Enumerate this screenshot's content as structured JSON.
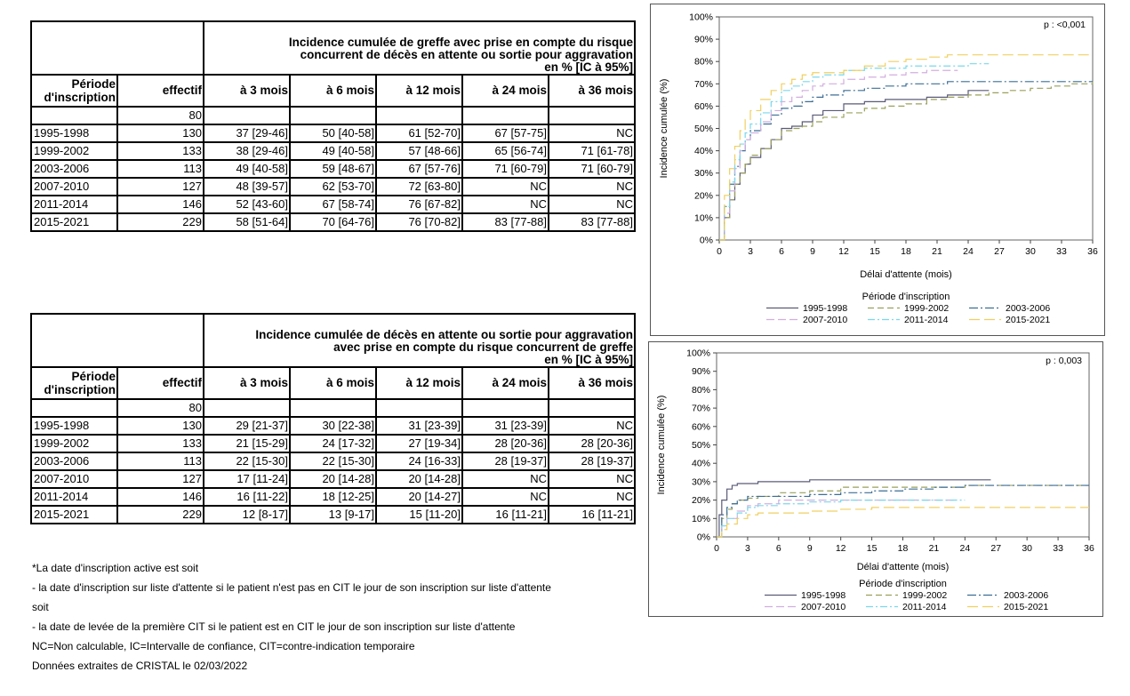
{
  "table_graft": {
    "title_lines": [
      "Incidence cumulée de greffe avec prise en compte du risque",
      "concurrent de décès en attente ou sortie pour aggravation",
      "en % [IC à 95%]"
    ],
    "headers": [
      "Période d'inscription",
      "effectif",
      "à 3 mois",
      "à 6 mois",
      "à 12 mois",
      "à 24 mois",
      "à 36 mois"
    ],
    "total_row": {
      "effectif": "80"
    },
    "rows": [
      {
        "period": "1995-1998",
        "n": "130",
        "m3": "37 [29-46]",
        "m6": "50 [40-58]",
        "m12": "61 [52-70]",
        "m24": "67 [57-75]",
        "m36": "NC"
      },
      {
        "period": "1999-2002",
        "n": "133",
        "m3": "38 [29-46]",
        "m6": "49 [40-58]",
        "m12": "57 [48-66]",
        "m24": "65 [56-74]",
        "m36": "71 [61-78]"
      },
      {
        "period": "2003-2006",
        "n": "113",
        "m3": "49 [40-58]",
        "m6": "59 [48-67]",
        "m12": "67 [57-76]",
        "m24": "71 [60-79]",
        "m36": "71 [60-79]"
      },
      {
        "period": "2007-2010",
        "n": "127",
        "m3": "48 [39-57]",
        "m6": "62 [53-70]",
        "m12": "72 [63-80]",
        "m24": "NC",
        "m36": "NC"
      },
      {
        "period": "2011-2014",
        "n": "146",
        "m3": "52 [43-60]",
        "m6": "67 [58-74]",
        "m12": "76 [67-82]",
        "m24": "NC",
        "m36": "NC"
      },
      {
        "period": "2015-2021",
        "n": "229",
        "m3": "58 [51-64]",
        "m6": "70 [64-76]",
        "m12": "76 [70-82]",
        "m24": "83 [77-88]",
        "m36": "83 [77-88]"
      }
    ]
  },
  "table_death": {
    "title_lines": [
      "Incidence cumulée de décès en attente ou sortie pour aggravation",
      "avec prise en compte du risque concurrent de greffe",
      "en % [IC à 95%]"
    ],
    "headers": [
      "Période d'inscription",
      "effectif",
      "à 3 mois",
      "à 6 mois",
      "à 12 mois",
      "à 24 mois",
      "à 36 mois"
    ],
    "total_row": {
      "effectif": "80"
    },
    "rows": [
      {
        "period": "1995-1998",
        "n": "130",
        "m3": "29 [21-37]",
        "m6": "30 [22-38]",
        "m12": "31 [23-39]",
        "m24": "31 [23-39]",
        "m36": "NC"
      },
      {
        "period": "1999-2002",
        "n": "133",
        "m3": "21 [15-29]",
        "m6": "24 [17-32]",
        "m12": "27 [19-34]",
        "m24": "28 [20-36]",
        "m36": "28 [20-36]"
      },
      {
        "period": "2003-2006",
        "n": "113",
        "m3": "22 [15-30]",
        "m6": "22 [15-30]",
        "m12": "24 [16-33]",
        "m24": "28 [19-37]",
        "m36": "28 [19-37]"
      },
      {
        "period": "2007-2010",
        "n": "127",
        "m3": "17 [11-24]",
        "m6": "20 [14-28]",
        "m12": "20 [14-28]",
        "m24": "NC",
        "m36": "NC"
      },
      {
        "period": "2011-2014",
        "n": "146",
        "m3": "16 [11-22]",
        "m6": "18 [12-25]",
        "m12": "20 [14-27]",
        "m24": "NC",
        "m36": "NC"
      },
      {
        "period": "2015-2021",
        "n": "229",
        "m3": "12 [8-17]",
        "m6": "13 [9-17]",
        "m12": "15 [11-20]",
        "m24": "16 [11-21]",
        "m36": "16 [11-21]"
      }
    ]
  },
  "notes": [
    "*La date d'inscription active est soit",
    "- la date d'inscription sur liste d'attente si le patient n'est pas en CIT le jour de son inscription sur liste d'attente",
    "soit",
    "- la date de levée de la première CIT si le patient est en CIT le jour de son inscription sur liste d'attente",
    "NC=Non calculable, IC=Intervalle de confiance, CIT=contre-indication temporaire",
    "Données extraites de CRISTAL le 02/03/2022"
  ],
  "colors": {
    "1995-1998": "#5a5a78",
    "1999-2002": "#9aa05a",
    "2003-2006": "#3c6e96",
    "2007-2010": "#d2aee0",
    "2011-2014": "#7ad8ec",
    "2015-2021": "#f0d060"
  },
  "chart_data": [
    {
      "type": "line",
      "title": "",
      "annotation": "p : <0,001",
      "xlabel": "Délai d'attente (mois)",
      "ylabel": "Incidence cumulée (%)",
      "xlim": [
        0,
        36
      ],
      "ylim": [
        0,
        100
      ],
      "xticks": [
        "0",
        "3",
        "6",
        "9",
        "12",
        "15",
        "18",
        "21",
        "24",
        "27",
        "30",
        "33",
        "36"
      ],
      "yticks": [
        "0%",
        "10%",
        "20%",
        "30%",
        "40%",
        "50%",
        "60%",
        "70%",
        "80%",
        "90%",
        "100%"
      ],
      "legend_title": "Période d'inscription",
      "legend_placement": "bottom",
      "series": [
        {
          "name": "1995-1998",
          "x": [
            0,
            0.5,
            1,
            1.5,
            2,
            2.5,
            3,
            4,
            5,
            6,
            7,
            8,
            9,
            10,
            12,
            14,
            16,
            18,
            20,
            22,
            24,
            26
          ],
          "y": [
            0,
            10,
            18,
            25,
            30,
            34,
            37,
            41,
            45,
            50,
            51,
            53,
            56,
            58,
            61,
            62,
            63,
            63,
            64,
            65,
            67,
            67
          ]
        },
        {
          "name": "1999-2002",
          "x": [
            0,
            0.5,
            1,
            1.5,
            2,
            2.5,
            3,
            4,
            5,
            6,
            7,
            8,
            9,
            10,
            12,
            14,
            16,
            18,
            20,
            22,
            24,
            26,
            28,
            30,
            32,
            34,
            36
          ],
          "y": [
            0,
            10,
            18,
            25,
            30,
            34,
            38,
            41,
            45,
            49,
            50,
            51,
            53,
            55,
            57,
            59,
            60,
            61,
            63,
            64,
            65,
            66,
            67,
            68,
            69,
            70,
            71
          ]
        },
        {
          "name": "2003-2006",
          "x": [
            0,
            0.5,
            1,
            1.5,
            2,
            2.5,
            3,
            4,
            5,
            6,
            7,
            8,
            9,
            10,
            12,
            14,
            16,
            18,
            20,
            22,
            24,
            26,
            28,
            30,
            32,
            34,
            36
          ],
          "y": [
            0,
            15,
            25,
            33,
            40,
            45,
            49,
            52,
            56,
            59,
            60,
            62,
            64,
            65,
            67,
            68,
            69,
            70,
            70,
            71,
            71,
            71,
            71,
            71,
            71,
            71,
            71
          ]
        },
        {
          "name": "2007-2010",
          "x": [
            0,
            0.5,
            1,
            1.5,
            2,
            2.5,
            3,
            4,
            5,
            6,
            7,
            8,
            9,
            10,
            12,
            14,
            16,
            18,
            20,
            22,
            23
          ],
          "y": [
            0,
            12,
            22,
            32,
            40,
            45,
            48,
            53,
            58,
            62,
            64,
            67,
            69,
            70,
            72,
            73,
            74,
            75,
            76,
            76,
            76
          ]
        },
        {
          "name": "2011-2014",
          "x": [
            0,
            0.5,
            1,
            1.5,
            2,
            2.5,
            3,
            4,
            5,
            6,
            7,
            8,
            9,
            10,
            12,
            14,
            16,
            18,
            20,
            22,
            24,
            26
          ],
          "y": [
            0,
            15,
            26,
            36,
            43,
            48,
            52,
            57,
            62,
            67,
            69,
            71,
            73,
            74,
            76,
            77,
            77,
            78,
            78,
            78,
            79,
            79
          ]
        },
        {
          "name": "2015-2021",
          "x": [
            0,
            0.5,
            1,
            1.5,
            2,
            2.5,
            3,
            4,
            5,
            6,
            7,
            8,
            9,
            10,
            12,
            14,
            16,
            18,
            20,
            22,
            24,
            26,
            28,
            30,
            32,
            34,
            36
          ],
          "y": [
            0,
            20,
            32,
            42,
            49,
            54,
            58,
            63,
            67,
            70,
            72,
            74,
            75,
            75,
            76,
            78,
            80,
            81,
            82,
            83,
            83,
            83,
            83,
            83,
            83,
            83,
            83
          ]
        }
      ]
    },
    {
      "type": "line",
      "title": "",
      "annotation": "p : 0,003",
      "xlabel": "Délai d'attente (mois)",
      "ylabel": "Incidence cumulée (%)",
      "xlim": [
        0,
        36
      ],
      "ylim": [
        0,
        100
      ],
      "xticks": [
        "0",
        "3",
        "6",
        "9",
        "12",
        "15",
        "18",
        "21",
        "24",
        "27",
        "30",
        "33",
        "36"
      ],
      "yticks": [
        "0%",
        "10%",
        "20%",
        "30%",
        "40%",
        "50%",
        "60%",
        "70%",
        "80%",
        "90%",
        "100%"
      ],
      "legend_title": "Période d'inscription",
      "legend_placement": "bottom",
      "series": [
        {
          "name": "1995-1998",
          "x": [
            0,
            0.25,
            0.5,
            1,
            1.5,
            2,
            3,
            4,
            6,
            9,
            12,
            15,
            18,
            21,
            24,
            26.5
          ],
          "y": [
            0,
            12,
            20,
            26,
            28,
            29,
            29,
            30,
            30,
            31,
            31,
            31,
            31,
            31,
            31,
            31
          ]
        },
        {
          "name": "1999-2002",
          "x": [
            0,
            0.5,
            1,
            1.5,
            2,
            3,
            4,
            6,
            9,
            12,
            15,
            18,
            21,
            24,
            27,
            30,
            33,
            36
          ],
          "y": [
            0,
            10,
            15,
            18,
            20,
            21,
            22,
            24,
            25,
            27,
            27,
            27,
            27,
            28,
            28,
            28,
            28,
            28
          ]
        },
        {
          "name": "2003-2006",
          "x": [
            0,
            0.5,
            1,
            1.5,
            2,
            3,
            4,
            6,
            9,
            12,
            15,
            18,
            21,
            24,
            27,
            30,
            33,
            36
          ],
          "y": [
            0,
            12,
            16,
            18,
            20,
            22,
            22,
            22,
            23,
            24,
            25,
            26,
            27,
            28,
            28,
            28,
            28,
            28
          ]
        },
        {
          "name": "2007-2010",
          "x": [
            0,
            0.5,
            1,
            2,
            3,
            4,
            6,
            9,
            12,
            15,
            18,
            21,
            23
          ],
          "y": [
            0,
            6,
            10,
            14,
            17,
            18,
            20,
            20,
            20,
            20,
            20,
            20,
            20
          ]
        },
        {
          "name": "2011-2014",
          "x": [
            0,
            0.5,
            1,
            2,
            3,
            4,
            6,
            9,
            12,
            15,
            18,
            21,
            24
          ],
          "y": [
            0,
            6,
            10,
            13,
            16,
            17,
            18,
            19,
            20,
            20,
            20,
            20,
            20
          ]
        },
        {
          "name": "2015-2021",
          "x": [
            0,
            0.5,
            1,
            2,
            3,
            4,
            6,
            9,
            12,
            15,
            18,
            21,
            24,
            27,
            30,
            33,
            36
          ],
          "y": [
            0,
            4,
            7,
            10,
            12,
            13,
            13,
            14,
            15,
            16,
            16,
            16,
            16,
            16,
            16,
            16,
            16
          ]
        }
      ]
    }
  ]
}
